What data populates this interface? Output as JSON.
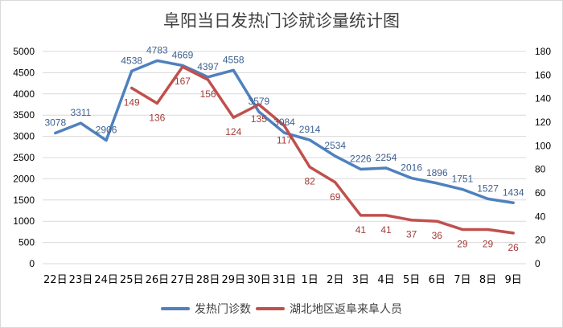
{
  "chart_data": {
    "type": "line",
    "title": "阜阳当日发热门诊就诊量统计图",
    "categories": [
      "22日",
      "23日",
      "24日",
      "25日",
      "26日",
      "27日",
      "28日",
      "29日",
      "30日",
      "31日",
      "1日",
      "2日",
      "3日",
      "4日",
      "5日",
      "6日",
      "7日",
      "8日",
      "9日"
    ],
    "series": [
      {
        "name": "发热门诊数",
        "axis": "left",
        "color": "#4f81bd",
        "values": [
          3078,
          3311,
          2906,
          4538,
          4783,
          4669,
          4397,
          4558,
          3579,
          3084,
          2914,
          2534,
          2226,
          2254,
          2016,
          1896,
          1751,
          1527,
          1434
        ]
      },
      {
        "name": "湖北地区返阜来阜人员",
        "axis": "right",
        "color": "#c0504d",
        "values": [
          null,
          null,
          null,
          149,
          136,
          167,
          156,
          124,
          135,
          117,
          82,
          69,
          41,
          41,
          37,
          36,
          29,
          29,
          26
        ]
      }
    ],
    "left_axis": {
      "min": 0,
      "max": 5000,
      "step": 500,
      "ticks": [
        "0",
        "500",
        "1000",
        "1500",
        "2000",
        "2500",
        "3000",
        "3500",
        "4000",
        "4500",
        "5000"
      ]
    },
    "right_axis": {
      "min": 0,
      "max": 180,
      "step": 20,
      "ticks": [
        "0",
        "20",
        "40",
        "60",
        "80",
        "100",
        "120",
        "140",
        "160",
        "180"
      ]
    },
    "xlabel": "",
    "ylabel": "",
    "grid": true,
    "legend_position": "bottom"
  },
  "legend": {
    "items": [
      {
        "label": "发热门诊数",
        "color": "#4f81bd"
      },
      {
        "label": "湖北地区返阜来阜人员",
        "color": "#c0504d"
      }
    ]
  }
}
